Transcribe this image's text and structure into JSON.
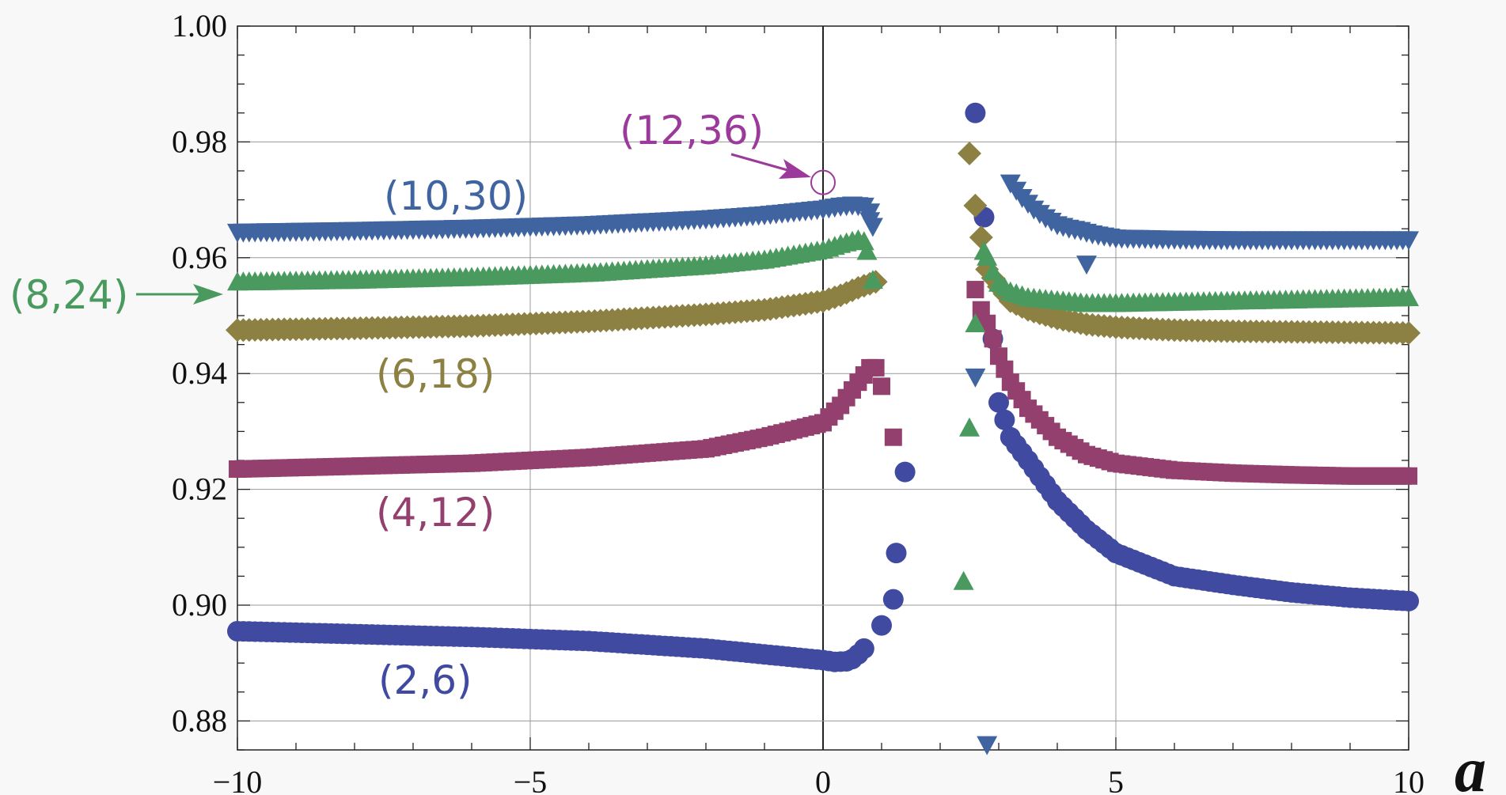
{
  "chart_data": {
    "type": "scatter",
    "title": "",
    "xlabel": "a",
    "ylabel": "",
    "xlim": [
      -10,
      10
    ],
    "ylim": [
      0.875,
      1.0
    ],
    "grid": true,
    "x_ticks": [
      -10,
      -5,
      0,
      5,
      10
    ],
    "x_tick_labels": [
      "−10",
      "−5",
      "0",
      "5",
      "10"
    ],
    "y_ticks": [
      0.88,
      0.9,
      0.92,
      0.94,
      0.96,
      0.98,
      1.0
    ],
    "y_tick_labels": [
      "0.88",
      "0.90",
      "0.92",
      "0.94",
      "0.96",
      "0.98",
      "1.00"
    ],
    "series": [
      {
        "name": "(2,6)",
        "color": "#3f4aa0",
        "marker": "circle",
        "left": {
          "x": [
            -10,
            -8,
            -6,
            -4,
            -2,
            -1,
            0,
            0.2,
            0.4,
            0.5,
            0.6,
            0.7
          ],
          "y": [
            0.8955,
            0.895,
            0.8945,
            0.8938,
            0.8925,
            0.8915,
            0.8905,
            0.8902,
            0.8903,
            0.8907,
            0.8915,
            0.8925
          ]
        },
        "extra": [
          {
            "x": 1.0,
            "y": 0.8965
          },
          {
            "x": 1.2,
            "y": 0.901
          },
          {
            "x": 1.25,
            "y": 0.909
          },
          {
            "x": 1.4,
            "y": 0.923
          },
          {
            "x": 2.6,
            "y": 0.985
          },
          {
            "x": 2.75,
            "y": 0.967
          }
        ],
        "right": {
          "x": [
            2.9,
            3.0,
            3.2,
            3.5,
            4.0,
            4.5,
            5,
            6,
            7,
            8,
            9,
            10
          ],
          "y": [
            0.946,
            0.935,
            0.929,
            0.925,
            0.918,
            0.913,
            0.909,
            0.905,
            0.9035,
            0.9022,
            0.9013,
            0.9007
          ]
        }
      },
      {
        "name": "(4,12)",
        "color": "#94406f",
        "marker": "square",
        "left": {
          "x": [
            -10,
            -8,
            -6,
            -4,
            -2,
            -1,
            0,
            0.3,
            0.6,
            0.8,
            0.9
          ],
          "y": [
            0.9235,
            0.924,
            0.9245,
            0.9255,
            0.927,
            0.929,
            0.9315,
            0.9345,
            0.9385,
            0.941,
            0.941
          ]
        },
        "extra": [
          {
            "x": 1.0,
            "y": 0.9378
          },
          {
            "x": 1.2,
            "y": 0.929
          },
          {
            "x": 2.6,
            "y": 0.9545
          }
        ],
        "right": {
          "x": [
            2.7,
            2.85,
            3.0,
            3.2,
            3.5,
            4,
            4.5,
            5,
            6,
            7,
            8,
            9,
            10
          ],
          "y": [
            0.951,
            0.9475,
            0.943,
            0.9385,
            0.934,
            0.929,
            0.926,
            0.9245,
            0.9233,
            0.9228,
            0.9225,
            0.9223,
            0.9223
          ]
        }
      },
      {
        "name": "(6,18)",
        "color": "#8c8142",
        "marker": "diamond",
        "left": {
          "x": [
            -10,
            -8,
            -6,
            -4,
            -2,
            -1,
            0,
            0.3,
            0.6,
            0.8,
            0.95
          ],
          "y": [
            0.9475,
            0.9478,
            0.9482,
            0.949,
            0.9502,
            0.951,
            0.9525,
            0.9535,
            0.9548,
            0.9555,
            0.956
          ]
        },
        "extra": [
          {
            "x": 2.5,
            "y": 0.978
          },
          {
            "x": 2.6,
            "y": 0.969
          },
          {
            "x": 2.7,
            "y": 0.9635
          }
        ],
        "right": {
          "x": [
            2.8,
            3.0,
            3.2,
            3.5,
            4,
            4.5,
            5,
            6,
            7,
            8,
            9,
            10
          ],
          "y": [
            0.958,
            0.955,
            0.9525,
            0.951,
            0.9495,
            0.9485,
            0.948,
            0.9475,
            0.9473,
            0.9472,
            0.9471,
            0.947
          ]
        }
      },
      {
        "name": "(8,24)",
        "color": "#4a9a5f",
        "marker": "triangle-up",
        "left": {
          "x": [
            -10,
            -8,
            -6,
            -4,
            -2,
            -1,
            0,
            0.3,
            0.6,
            0.75
          ],
          "y": [
            0.9557,
            0.956,
            0.9565,
            0.9572,
            0.9585,
            0.9595,
            0.9612,
            0.9622,
            0.963,
            0.9625
          ]
        },
        "extra": [
          {
            "x": 0.75,
            "y": 0.961
          },
          {
            "x": 0.85,
            "y": 0.956
          },
          {
            "x": 2.4,
            "y": 0.904
          },
          {
            "x": 2.5,
            "y": 0.9305
          },
          {
            "x": 2.6,
            "y": 0.9485
          },
          {
            "x": 2.75,
            "y": 0.961
          }
        ],
        "right": {
          "x": [
            2.8,
            2.9,
            3.0,
            3.2,
            3.5,
            4,
            4.5,
            5,
            6,
            7,
            8,
            9,
            10
          ],
          "y": [
            0.96,
            0.9575,
            0.9555,
            0.954,
            0.953,
            0.9525,
            0.952,
            0.952,
            0.9522,
            0.9524,
            0.9526,
            0.9528,
            0.953
          ]
        }
      },
      {
        "name": "(10,30)",
        "color": "#3f64a0",
        "marker": "triangle-down",
        "left": {
          "x": [
            -10,
            -8,
            -6,
            -4,
            -2,
            -1,
            0,
            0.3,
            0.5,
            0.7,
            0.8
          ],
          "y": [
            0.9645,
            0.9648,
            0.9652,
            0.9658,
            0.9668,
            0.9675,
            0.9685,
            0.969,
            0.9692,
            0.969,
            0.968
          ]
        },
        "extra": [
          {
            "x": 0.8,
            "y": 0.9665
          },
          {
            "x": 0.85,
            "y": 0.9655
          },
          {
            "x": 2.6,
            "y": 0.9395
          },
          {
            "x": 2.8,
            "y": 0.876
          },
          {
            "x": 4.5,
            "y": 0.959
          }
        ],
        "right": {
          "x": [
            3.2,
            3.4,
            3.6,
            3.8,
            4.0,
            4.2,
            4.4,
            4.6,
            5,
            6,
            7,
            8,
            9,
            10
          ],
          "y": [
            0.973,
            0.9705,
            0.9685,
            0.967,
            0.9658,
            0.9652,
            0.9648,
            0.9642,
            0.9635,
            0.9633,
            0.9632,
            0.9632,
            0.9632,
            0.9632
          ]
        }
      },
      {
        "name": "(12,36)",
        "color": "#9b3a9a",
        "marker": "circle-open",
        "extra": [
          {
            "x": 0.0,
            "y": 0.973
          }
        ]
      }
    ],
    "labels": [
      {
        "text": "(10,30)",
        "color": "#3f64a0",
        "side": "inline"
      },
      {
        "text": "(8,24)",
        "color": "#4a9a5f",
        "side": "left-arrow"
      },
      {
        "text": "(6,18)",
        "color": "#8c8142",
        "side": "inline"
      },
      {
        "text": "(4,12)",
        "color": "#94406f",
        "side": "inline"
      },
      {
        "text": "(2,6)",
        "color": "#3f4aa0",
        "side": "inline"
      },
      {
        "text": "(12,36)",
        "color": "#9b3a9a",
        "side": "arrow"
      }
    ]
  }
}
